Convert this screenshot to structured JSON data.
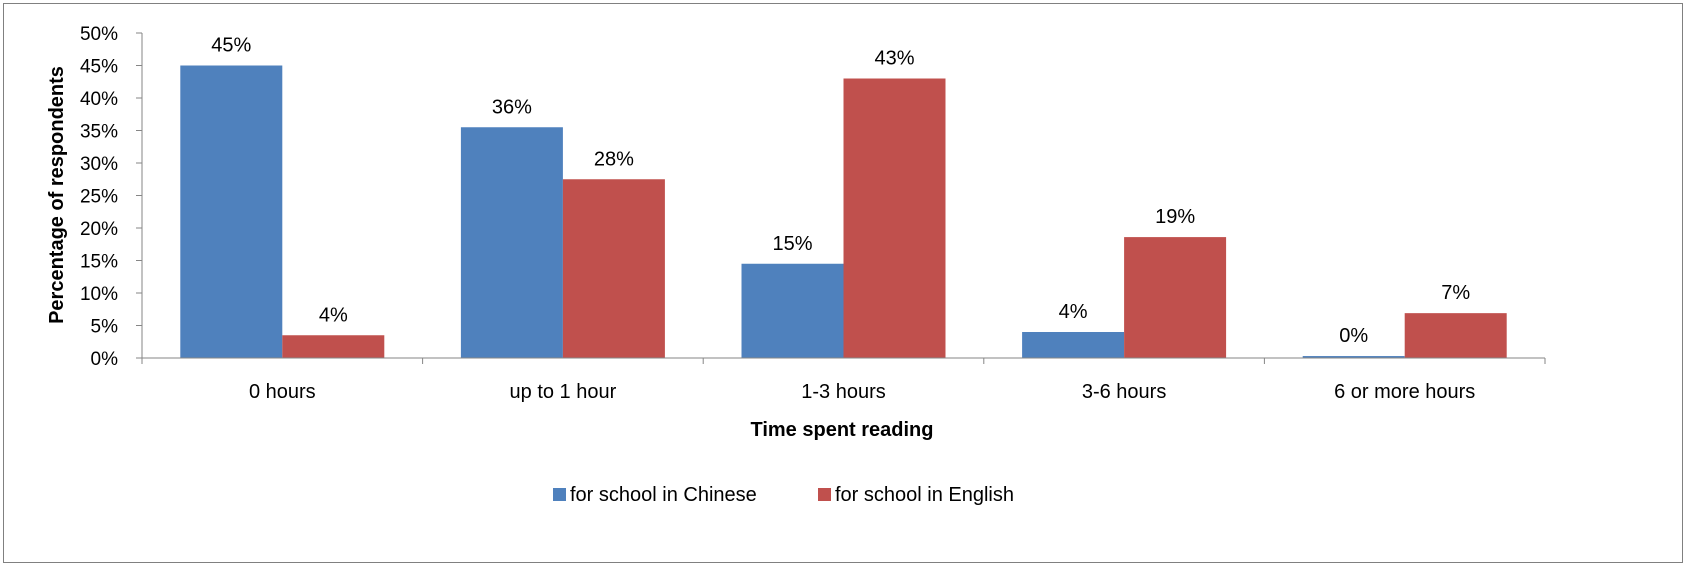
{
  "chart_data": {
    "type": "bar",
    "title": "",
    "xlabel": "Time spent reading",
    "ylabel": "Percentage of respondents",
    "ylim": [
      0,
      50
    ],
    "y_ticks": [
      "0%",
      "5%",
      "10%",
      "15%",
      "20%",
      "25%",
      "30%",
      "35%",
      "40%",
      "45%",
      "50%"
    ],
    "categories": [
      "0 hours",
      "up to 1 hour",
      "1-3 hours",
      "3-6 hours",
      "6 or more hours"
    ],
    "series": [
      {
        "name": "for school in Chinese",
        "color": "#4f81bd",
        "values": [
          45,
          35.5,
          14.5,
          4,
          0.3
        ],
        "labels": [
          "45%",
          "36%",
          "15%",
          "4%",
          "0%"
        ]
      },
      {
        "name": "for school in English",
        "color": "#c0504d",
        "values": [
          3.5,
          27.5,
          43,
          18.6,
          6.9
        ],
        "labels": [
          "4%",
          "28%",
          "43%",
          "19%",
          "7%"
        ]
      }
    ],
    "grid": false,
    "legend_position": "bottom"
  }
}
